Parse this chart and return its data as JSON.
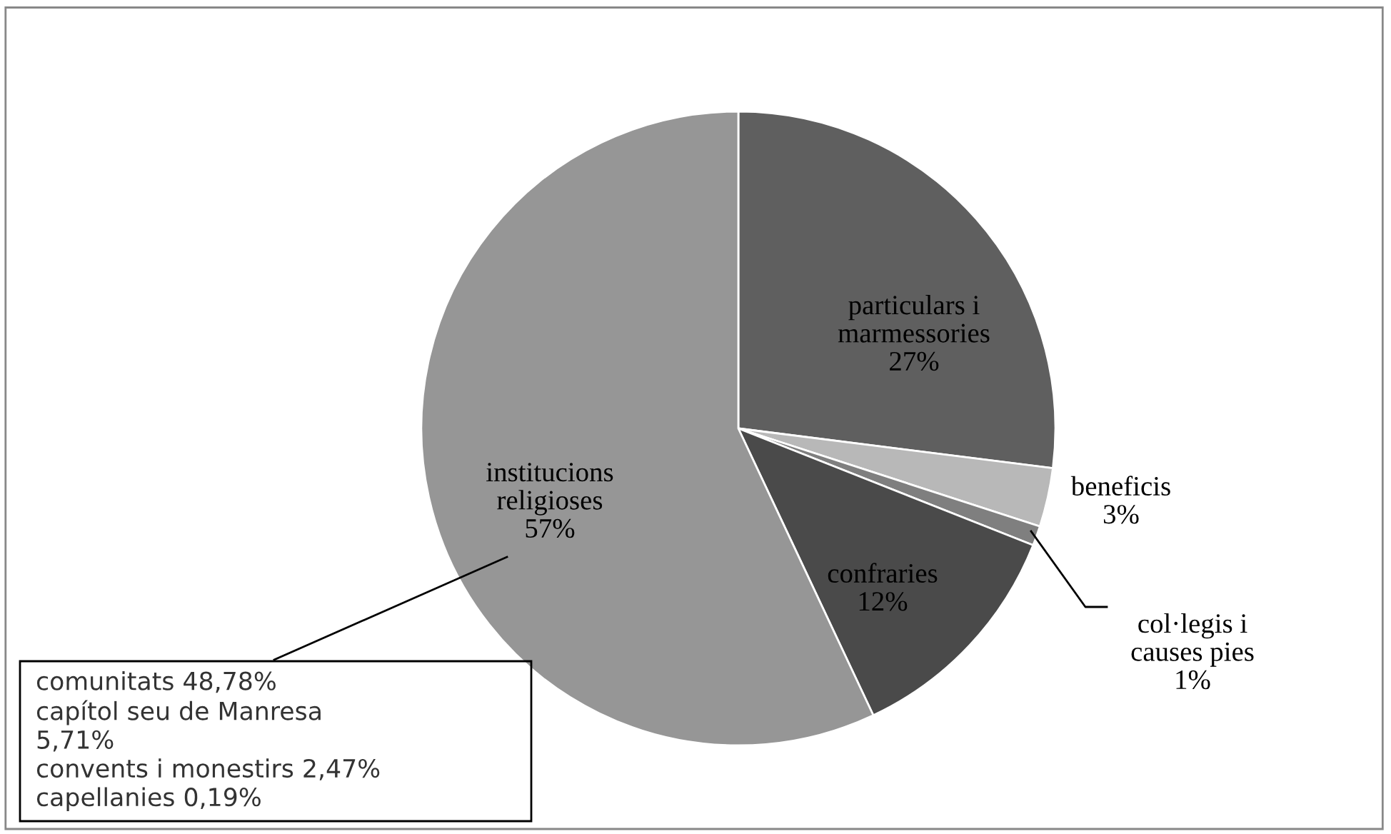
{
  "chart_data": {
    "type": "pie",
    "categories": [
      "particulars i\nmarmessories",
      "beneficis",
      "col·legis i\ncauses pies",
      "confraries",
      "institucions\nreligioses"
    ],
    "values": [
      27,
      3,
      1,
      12,
      57
    ],
    "value_labels": [
      "27%",
      "3%",
      "1%",
      "12%",
      "57%"
    ],
    "colors": [
      "#5f5f5f",
      "#b8b8b8",
      "#7f7f7f",
      "#4a4a4a",
      "#969696"
    ],
    "annotations": [
      "comunitats 48,78%\ncapítol seu de Manresa\n5,71%\nconvents i monestirs 2,47%\ncapellanies 0,19%"
    ]
  }
}
